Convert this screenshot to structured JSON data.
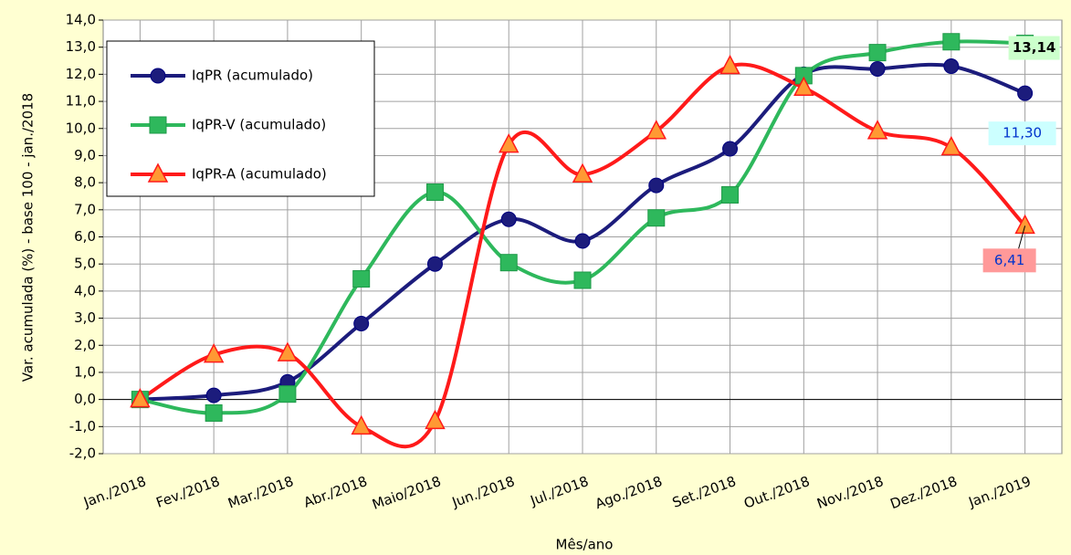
{
  "chart_data": {
    "type": "line",
    "y_label": "Var. acumulada (%) - base 100 - jan./2018",
    "x_label": "Mês/ano",
    "categories": [
      "Jan./2018",
      "Fev./2018",
      "Mar./2018",
      "Abr./2018",
      "Maio/2018",
      "Jun./2018",
      "Jul./2018",
      "Ago./2018",
      "Set./2018",
      "Out./2018",
      "Nov./2018",
      "Dez./2018",
      "Jan./2019"
    ],
    "series": [
      {
        "name": "IqPR (acumulado)",
        "color": "#1c1c7c",
        "marker": "circle",
        "values": [
          0,
          0.15,
          0.65,
          2.8,
          5.0,
          6.65,
          5.85,
          7.9,
          9.25,
          12.0,
          12.2,
          12.3,
          11.3
        ],
        "value_labels": [
          null,
          null,
          null,
          null,
          null,
          null,
          null,
          null,
          null,
          null,
          null,
          null,
          "11,30"
        ]
      },
      {
        "name": "IqPR-V  (acumulado)",
        "color": "#2eb85c",
        "marker": "square",
        "values": [
          0,
          -0.5,
          0.2,
          4.45,
          7.65,
          5.05,
          4.4,
          6.7,
          7.55,
          11.95,
          12.8,
          13.2,
          13.14
        ],
        "value_labels": [
          null,
          null,
          null,
          null,
          null,
          null,
          null,
          null,
          null,
          null,
          null,
          null,
          "13,14"
        ]
      },
      {
        "name": "IqPR-A  (acumulado)",
        "color": "#ff1a1a",
        "marker": "triangle",
        "values": [
          0,
          1.65,
          1.7,
          -1.0,
          -0.8,
          9.4,
          8.3,
          9.9,
          12.3,
          11.5,
          9.9,
          9.3,
          6.41
        ],
        "value_labels": [
          null,
          null,
          null,
          null,
          null,
          null,
          null,
          null,
          null,
          null,
          null,
          null,
          "6,41"
        ]
      }
    ],
    "ylim": [
      -2,
      14
    ],
    "yticks": [
      {
        "value": -2,
        "label": "-2,0"
      },
      {
        "value": -1,
        "label": "-1,0"
      },
      {
        "value": 0,
        "label": "0,0"
      },
      {
        "value": 1,
        "label": "1,0"
      },
      {
        "value": 2,
        "label": "2,0"
      },
      {
        "value": 3,
        "label": "3,0"
      },
      {
        "value": 4,
        "label": "4,0"
      },
      {
        "value": 5,
        "label": "5,0"
      },
      {
        "value": 6,
        "label": "6,0"
      },
      {
        "value": 7,
        "label": "7,0"
      },
      {
        "value": 8,
        "label": "8,0"
      },
      {
        "value": 9,
        "label": "9,0"
      },
      {
        "value": 10,
        "label": "10,0"
      },
      {
        "value": 11,
        "label": "11,0"
      },
      {
        "value": 12,
        "label": "12,0"
      },
      {
        "value": 13,
        "label": "13,0"
      },
      {
        "value": 14,
        "label": "14,0"
      }
    ],
    "grid": true,
    "legend": "upper left"
  }
}
